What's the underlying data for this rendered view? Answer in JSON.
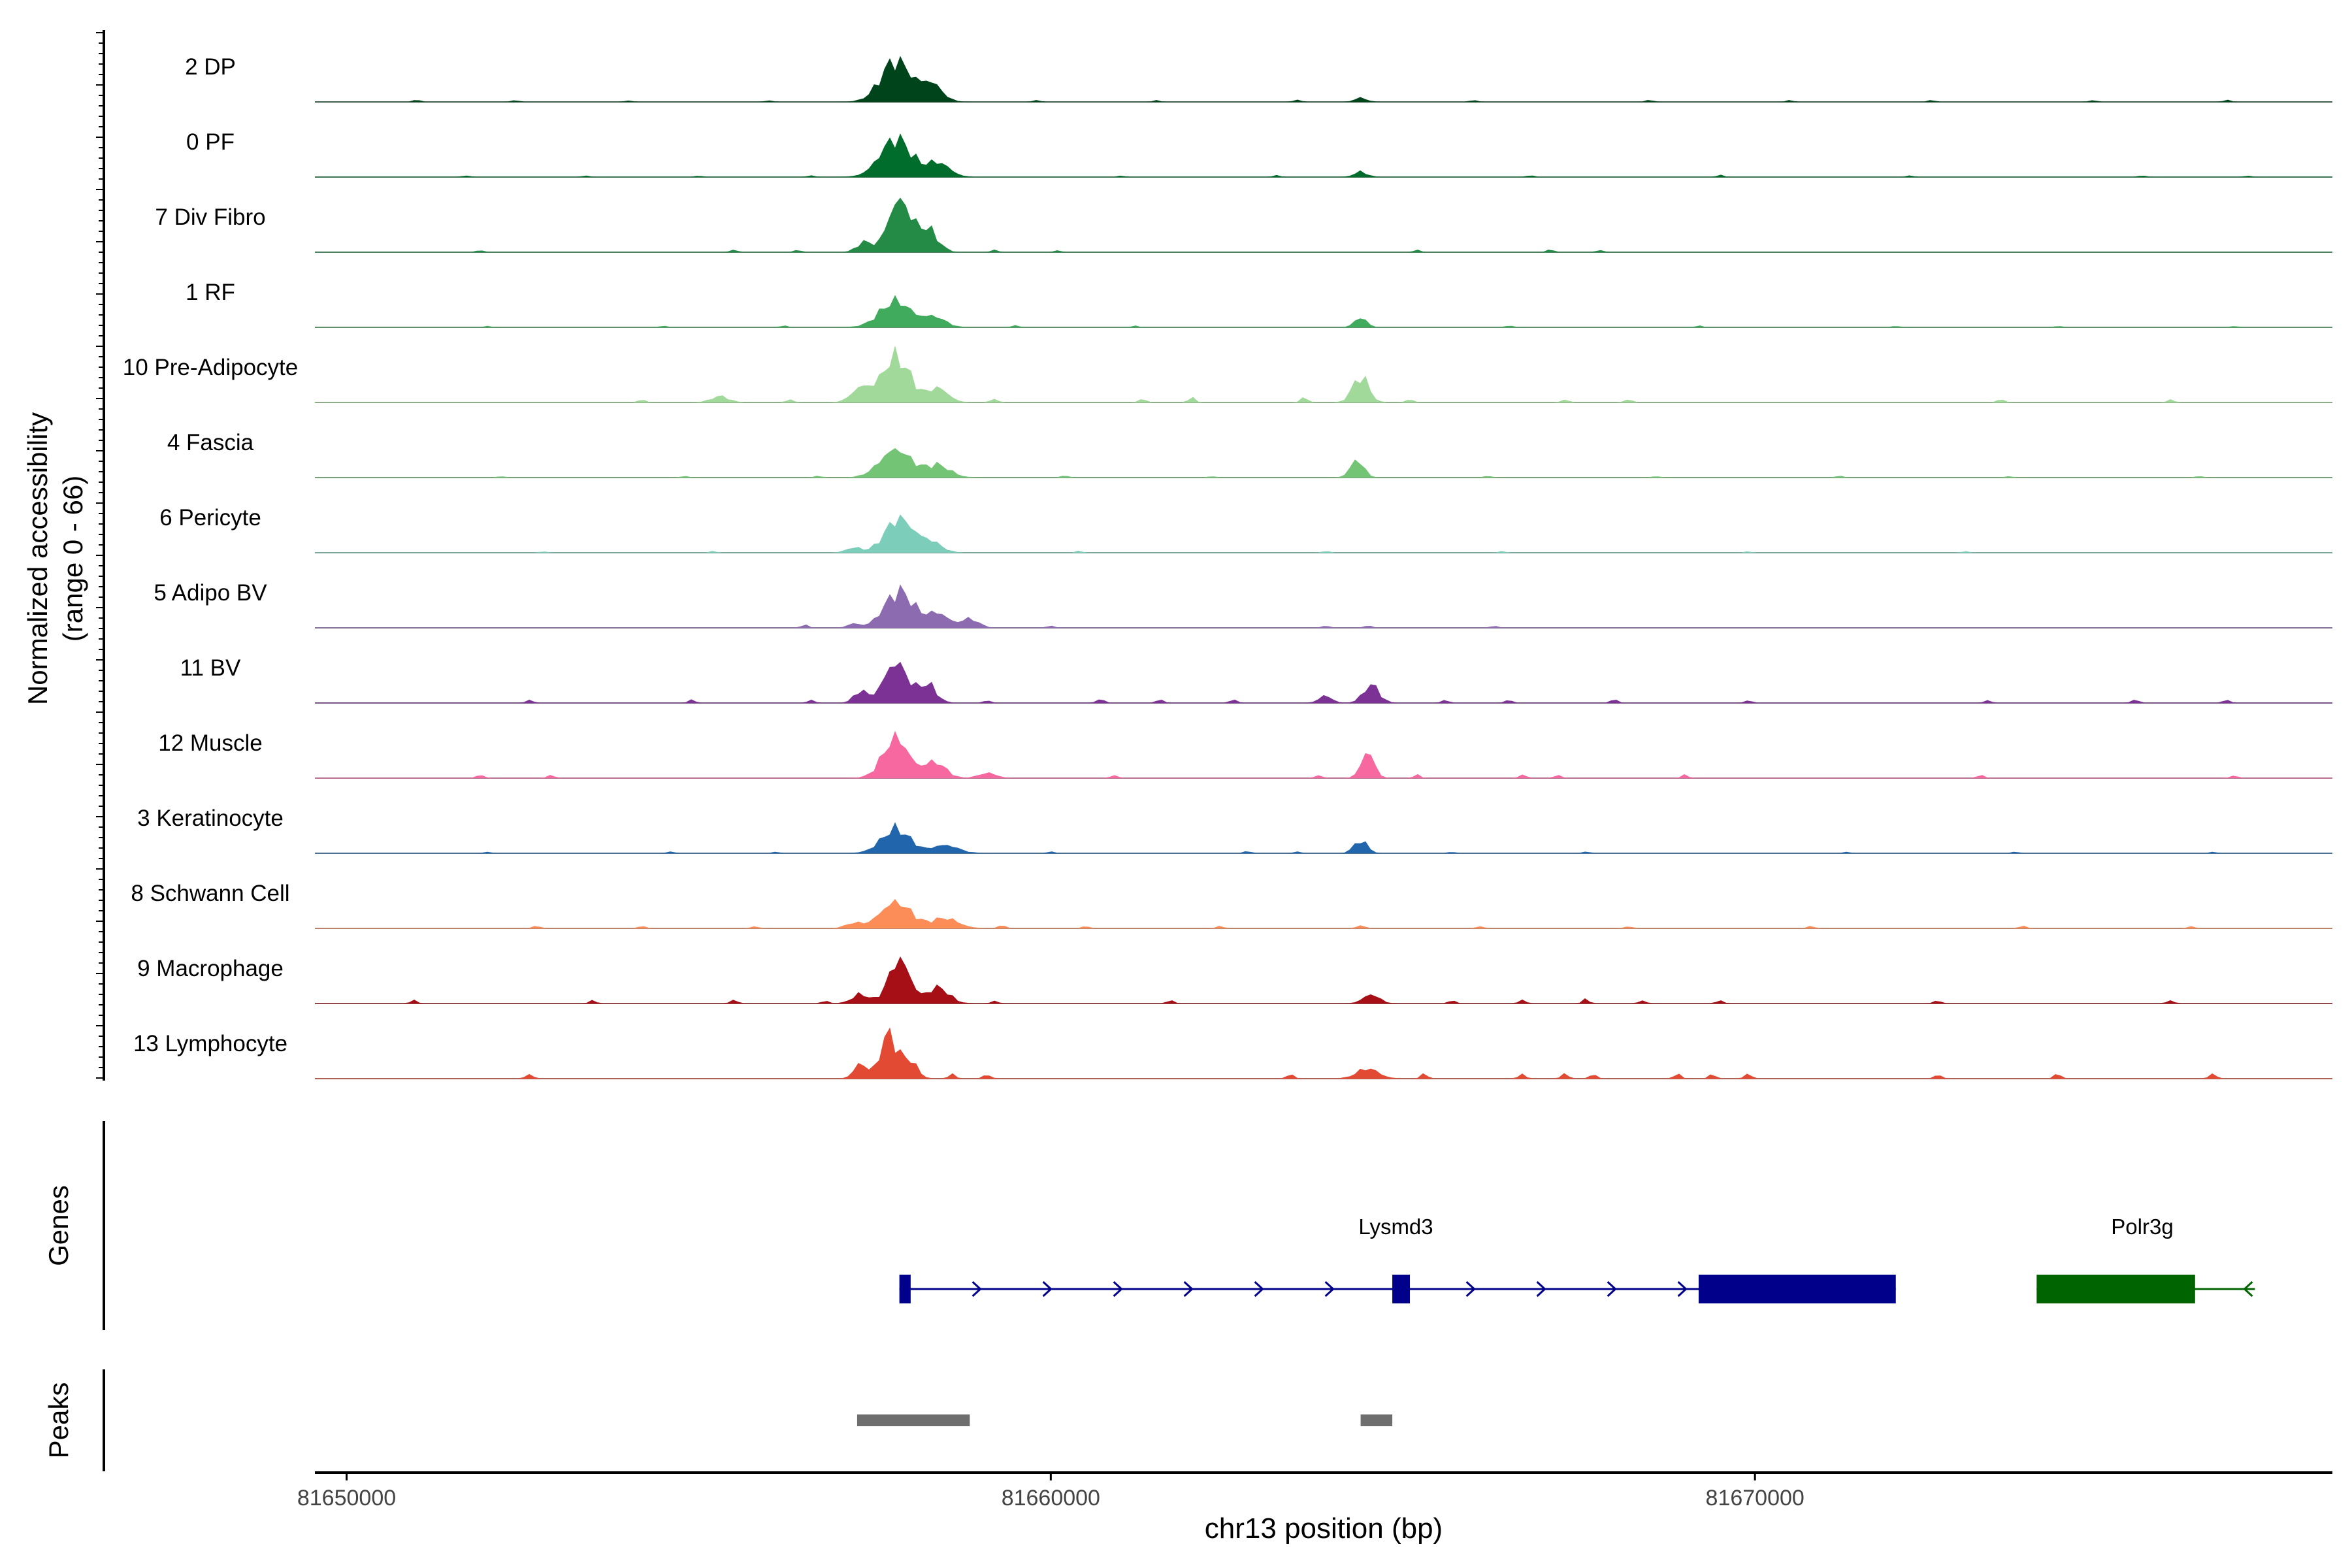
{
  "chart_data": {
    "type": "area",
    "title": "",
    "ylabel": "Normalized accessibility",
    "ylabel_range": "(range 0 - 66)",
    "ylim": [
      0,
      66
    ],
    "xlabel": "chr13 position (bp)",
    "xlim": [
      81649550,
      81678200
    ],
    "x_ticks": [
      81650000,
      81660000,
      81670000
    ],
    "x_tick_labels": [
      "81650000",
      "81660000",
      "81670000"
    ],
    "tracks": [
      {
        "name": "2 DP",
        "color": "#00441b",
        "peaks": [
          [
            81657800,
            41,
            210
          ],
          [
            81658300,
            18,
            150
          ],
          [
            81664400,
            4,
            80
          ]
        ],
        "noise": [
          [
            81651000,
            1.8
          ],
          [
            81652400,
            1.5
          ],
          [
            81654000,
            1.2
          ],
          [
            81656000,
            1.4
          ],
          [
            81659800,
            1.6
          ],
          [
            81661500,
            1.2
          ],
          [
            81663500,
            2.0
          ],
          [
            81666000,
            1.5
          ],
          [
            81668500,
            1.8
          ],
          [
            81670500,
            1.4
          ],
          [
            81672500,
            1.6
          ],
          [
            81674800,
            1.5
          ],
          [
            81676700,
            1.8
          ]
        ]
      },
      {
        "name": "0 PF",
        "color": "#006d2c",
        "peaks": [
          [
            81657800,
            38,
            220
          ],
          [
            81658400,
            14,
            160
          ],
          [
            81664400,
            5,
            90
          ]
        ],
        "noise": [
          [
            81651700,
            1.5
          ],
          [
            81653400,
            1.2
          ],
          [
            81655000,
            1.0
          ],
          [
            81656600,
            1.4
          ],
          [
            81661000,
            1.0
          ],
          [
            81663200,
            1.6
          ],
          [
            81666800,
            1.5
          ],
          [
            81669500,
            1.8
          ],
          [
            81672200,
            1.2
          ],
          [
            81675500,
            1.4
          ],
          [
            81677000,
            1.0
          ]
        ]
      },
      {
        "name": "7 Div Fibro",
        "color": "#238b45",
        "peaks": [
          [
            81657850,
            52,
            160
          ],
          [
            81658250,
            22,
            140
          ],
          [
            81657350,
            10,
            100
          ]
        ],
        "noise": [
          [
            81651900,
            2.0
          ],
          [
            81655500,
            2.5
          ],
          [
            81656400,
            2.0
          ],
          [
            81659200,
            2.2
          ],
          [
            81660100,
            1.5
          ],
          [
            81665200,
            2.0
          ],
          [
            81667100,
            2.5
          ],
          [
            81667800,
            2.0
          ]
        ]
      },
      {
        "name": "1 RF",
        "color": "#41ab5d",
        "peaks": [
          [
            81657800,
            26,
            220
          ],
          [
            81658350,
            10,
            150
          ],
          [
            81664400,
            10,
            80
          ]
        ],
        "noise": [
          [
            81652000,
            1.0
          ],
          [
            81654500,
            1.2
          ],
          [
            81656200,
            1.4
          ],
          [
            81659500,
            1.8
          ],
          [
            81661200,
            1.2
          ],
          [
            81666500,
            1.5
          ],
          [
            81669200,
            1.4
          ],
          [
            81672000,
            1.2
          ],
          [
            81674300,
            1.2
          ],
          [
            81676800,
            1.0
          ]
        ]
      },
      {
        "name": "10 Pre-Adipocyte",
        "color": "#a1d99b",
        "peaks": [
          [
            81657800,
            45,
            200
          ],
          [
            81657300,
            14,
            130
          ],
          [
            81658400,
            14,
            140
          ],
          [
            81664400,
            26,
            110
          ],
          [
            81655300,
            6,
            120
          ]
        ],
        "noise": [
          [
            81654200,
            2.5
          ],
          [
            81656300,
            3.0
          ],
          [
            81659200,
            4.0
          ],
          [
            81661300,
            3.5
          ],
          [
            81662000,
            4.5
          ],
          [
            81663600,
            5.0
          ],
          [
            81665100,
            3.0
          ],
          [
            81667300,
            3.0
          ],
          [
            81668200,
            3.5
          ],
          [
            81673500,
            3.0
          ],
          [
            81675900,
            2.5
          ]
        ]
      },
      {
        "name": "4 Fascia",
        "color": "#74c476",
        "peaks": [
          [
            81657800,
            28,
            220
          ],
          [
            81658400,
            12,
            170
          ],
          [
            81664350,
            18,
            90
          ]
        ],
        "noise": [
          [
            81652200,
            1.2
          ],
          [
            81654800,
            1.2
          ],
          [
            81656700,
            1.5
          ],
          [
            81660200,
            1.8
          ],
          [
            81662300,
            1.2
          ],
          [
            81666200,
            1.4
          ],
          [
            81668600,
            1.2
          ],
          [
            81671200,
            1.5
          ],
          [
            81673600,
            1.2
          ],
          [
            81676300,
            1.2
          ]
        ]
      },
      {
        "name": "6 Pericyte",
        "color": "#7ccdba",
        "peaks": [
          [
            81657850,
            34,
            200
          ],
          [
            81658300,
            10,
            150
          ],
          [
            81657200,
            5,
            100
          ]
        ],
        "noise": [
          [
            81652800,
            1.0
          ],
          [
            81655200,
            1.2
          ],
          [
            81660400,
            1.5
          ],
          [
            81663900,
            1.5
          ],
          [
            81666400,
            1.2
          ],
          [
            81669900,
            1.0
          ],
          [
            81673000,
            1.2
          ]
        ]
      },
      {
        "name": "5 Adipo BV",
        "color": "#8c6bb1",
        "peaks": [
          [
            81657850,
            36,
            210
          ],
          [
            81658400,
            14,
            150
          ],
          [
            81658850,
            9,
            120
          ],
          [
            81657200,
            4,
            80
          ]
        ],
        "noise": [
          [
            81656500,
            3.0
          ],
          [
            81660000,
            2.0
          ],
          [
            81663900,
            2.0
          ],
          [
            81664500,
            2.5
          ],
          [
            81666300,
            1.8
          ]
        ]
      },
      {
        "name": "11 BV",
        "color": "#7b3294",
        "peaks": [
          [
            81657800,
            40,
            170
          ],
          [
            81658250,
            18,
            120
          ],
          [
            81657300,
            12,
            90
          ],
          [
            81664550,
            18,
            110
          ],
          [
            81663900,
            7,
            90
          ]
        ],
        "noise": [
          [
            81652600,
            3.0
          ],
          [
            81654900,
            3.0
          ],
          [
            81656600,
            3.0
          ],
          [
            81659100,
            2.5
          ],
          [
            81660700,
            4.5
          ],
          [
            81661550,
            3.5
          ],
          [
            81662600,
            3.5
          ],
          [
            81665600,
            3.0
          ],
          [
            81666500,
            3.0
          ],
          [
            81668000,
            3.5
          ],
          [
            81669900,
            2.5
          ],
          [
            81673300,
            2.5
          ],
          [
            81675400,
            3.5
          ],
          [
            81676700,
            3.0
          ]
        ]
      },
      {
        "name": "12 Muscle",
        "color": "#f768a1",
        "peaks": [
          [
            81657800,
            40,
            180
          ],
          [
            81658350,
            16,
            150
          ],
          [
            81659100,
            5,
            120
          ],
          [
            81664500,
            26,
            90
          ]
        ],
        "noise": [
          [
            81651900,
            3.5
          ],
          [
            81652900,
            3.0
          ],
          [
            81660900,
            3.0
          ],
          [
            81663800,
            3.0
          ],
          [
            81665200,
            3.0
          ],
          [
            81666700,
            3.5
          ],
          [
            81667200,
            3.0
          ],
          [
            81669000,
            3.0
          ],
          [
            81673200,
            3.0
          ],
          [
            81676800,
            2.5
          ]
        ]
      },
      {
        "name": "3 Keratinocyte",
        "color": "#2166ac",
        "peaks": [
          [
            81657800,
            24,
            200
          ],
          [
            81658500,
            8,
            180
          ],
          [
            81664400,
            13,
            90
          ]
        ],
        "noise": [
          [
            81652000,
            1.2
          ],
          [
            81654600,
            1.5
          ],
          [
            81656100,
            1.3
          ],
          [
            81660000,
            1.5
          ],
          [
            81662800,
            2.0
          ],
          [
            81663500,
            1.5
          ],
          [
            81665700,
            1.2
          ],
          [
            81667600,
            1.5
          ],
          [
            81671300,
            1.2
          ],
          [
            81673700,
            1.2
          ],
          [
            81676500,
            1.2
          ]
        ]
      },
      {
        "name": "8 Schwann Cell",
        "color": "#fc8d59",
        "peaks": [
          [
            81657800,
            26,
            220
          ],
          [
            81658500,
            10,
            180
          ],
          [
            81657200,
            5,
            110
          ]
        ],
        "noise": [
          [
            81652700,
            2.5
          ],
          [
            81654200,
            2.0
          ],
          [
            81655800,
            2.0
          ],
          [
            81659300,
            3.0
          ],
          [
            81660500,
            2.0
          ],
          [
            81662400,
            2.0
          ],
          [
            81664400,
            3.5
          ],
          [
            81666100,
            2.0
          ],
          [
            81668200,
            2.0
          ],
          [
            81670800,
            2.0
          ],
          [
            81673800,
            2.5
          ],
          [
            81676200,
            2.0
          ]
        ]
      },
      {
        "name": "9 Macrophage",
        "color": "#a50f15",
        "peaks": [
          [
            81657850,
            44,
            150
          ],
          [
            81658400,
            16,
            150
          ],
          [
            81657300,
            9,
            120
          ],
          [
            81664550,
            9,
            110
          ]
        ],
        "noise": [
          [
            81650950,
            3.0
          ],
          [
            81653500,
            3.0
          ],
          [
            81655500,
            3.5
          ],
          [
            81656800,
            2.5
          ],
          [
            81659200,
            2.5
          ],
          [
            81661700,
            3.0
          ],
          [
            81665700,
            3.0
          ],
          [
            81666700,
            3.5
          ],
          [
            81667600,
            4.0
          ],
          [
            81668400,
            3.0
          ],
          [
            81669500,
            3.0
          ],
          [
            81672600,
            3.0
          ],
          [
            81675900,
            3.0
          ]
        ]
      },
      {
        "name": "13 Lymphocyte",
        "color": "#e34a33",
        "peaks": [
          [
            81657700,
            44,
            120
          ],
          [
            81658000,
            18,
            100
          ],
          [
            81657300,
            15,
            90
          ],
          [
            81664500,
            10,
            150
          ]
        ],
        "noise": [
          [
            81652600,
            5.0
          ],
          [
            81658600,
            4.5
          ],
          [
            81659100,
            4.5
          ],
          [
            81663400,
            4.5
          ],
          [
            81665300,
            4.5
          ],
          [
            81666700,
            4.5
          ],
          [
            81667300,
            5.0
          ],
          [
            81667700,
            4.5
          ],
          [
            81668900,
            4.5
          ],
          [
            81669400,
            4.5
          ],
          [
            81669900,
            5.0
          ],
          [
            81672600,
            4.0
          ],
          [
            81674300,
            4.5
          ],
          [
            81676500,
            5.0
          ]
        ]
      }
    ],
    "genes": [
      {
        "name": "Lysmd3",
        "strand": "+",
        "color": "#00008b",
        "start": 81657850,
        "end": 81672000,
        "exons": [
          [
            81657850,
            81658010
          ],
          [
            81664850,
            81665100
          ],
          [
            81669200,
            81672000
          ]
        ]
      },
      {
        "name": "Polr3g",
        "strand": "-",
        "color": "#006400",
        "start": 81674000,
        "end": 81677100,
        "exons": [
          [
            81674000,
            81676250
          ]
        ]
      }
    ],
    "peak_regions": [
      [
        81657250,
        81658850
      ],
      [
        81664400,
        81664850
      ]
    ],
    "panel_labels": {
      "genes": "Genes",
      "peaks": "Peaks"
    }
  }
}
